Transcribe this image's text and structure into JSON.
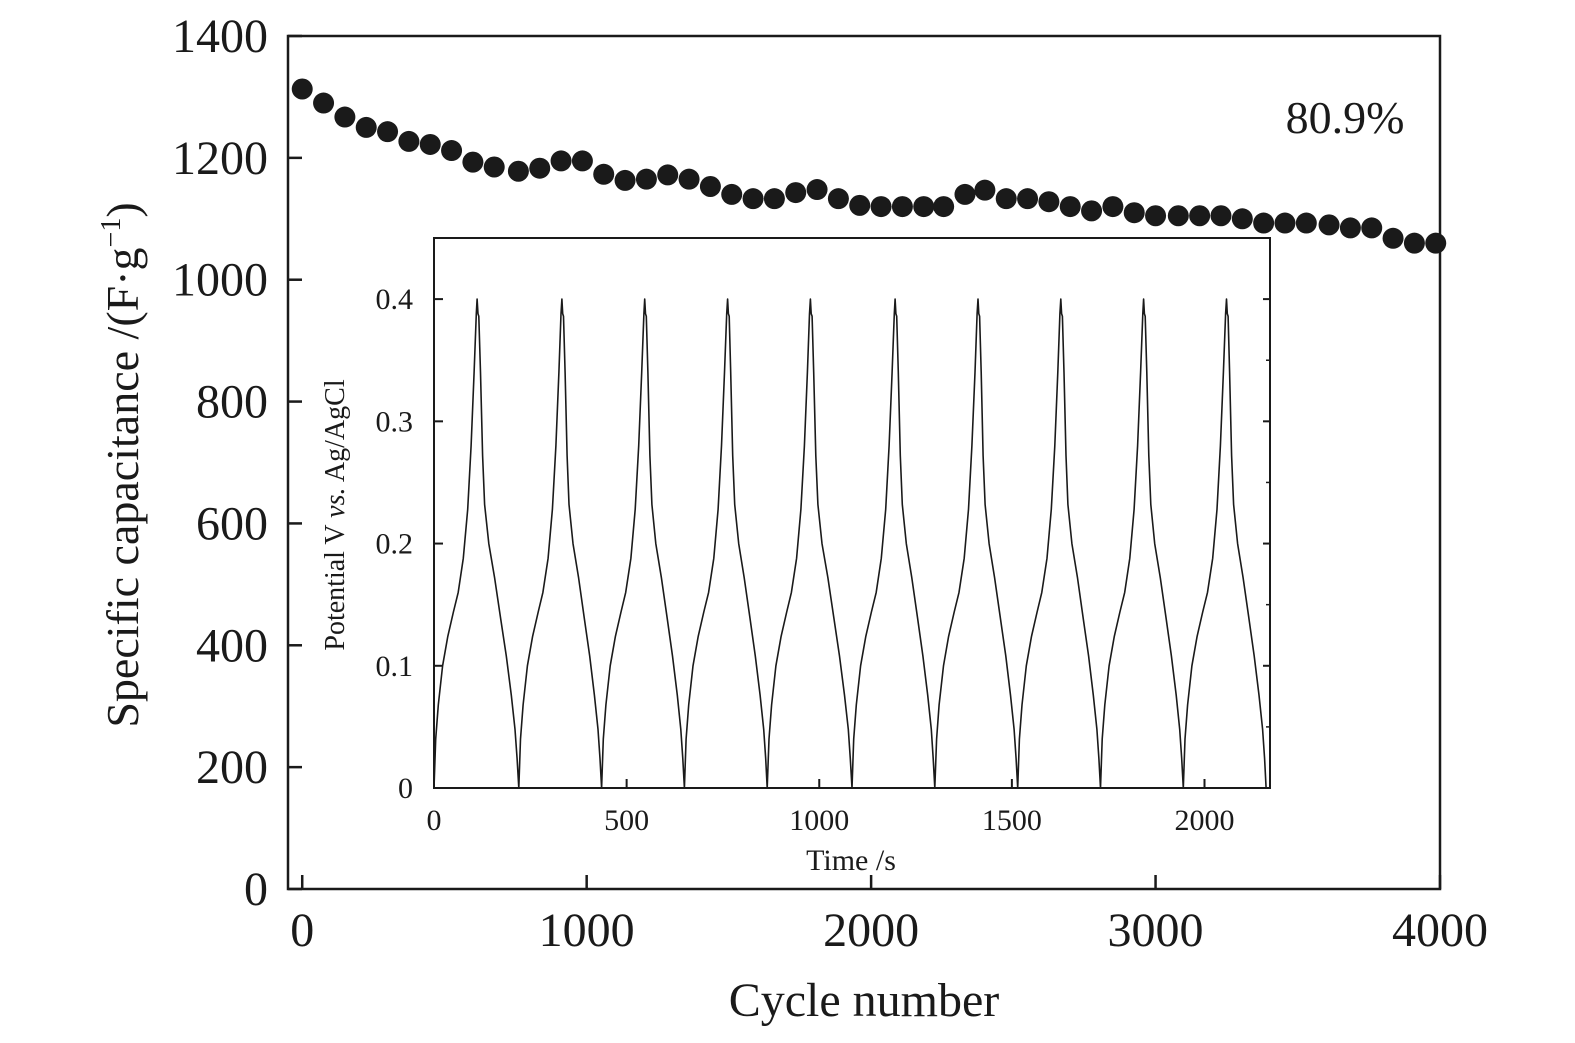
{
  "chart_data": [
    {
      "type": "scatter",
      "xlabel": "Cycle number",
      "ylabel": "Specific capacitance /(F·g",
      "ylabel_sup": "−1",
      "ylabel_close": ")",
      "xlim": [
        -50,
        4000
      ],
      "ylim": [
        0,
        1400
      ],
      "xticks": [
        0,
        1000,
        2000,
        3000,
        4000
      ],
      "yticks": [
        0,
        200,
        400,
        600,
        800,
        1000,
        1200,
        1400
      ],
      "annotation": "80.9%",
      "marker_color": "#1a1a1a",
      "series": [
        {
          "x": [
            0,
            75,
            150,
            225,
            300,
            375,
            450,
            525,
            600,
            675,
            760,
            835,
            910,
            985,
            1060,
            1135,
            1210,
            1285,
            1360,
            1435,
            1510,
            1585,
            1660,
            1735,
            1810,
            1885,
            1960,
            2035,
            2110,
            2185,
            2255,
            2330,
            2400,
            2475,
            2550,
            2625,
            2700,
            2775,
            2850,
            2925,
            3000,
            3080,
            3155,
            3230,
            3305,
            3380,
            3455,
            3530,
            3610,
            3685,
            3760,
            3835,
            3910,
            3985
          ],
          "y": [
            1313,
            1290,
            1267,
            1250,
            1243,
            1227,
            1222,
            1212,
            1193,
            1185,
            1178,
            1183,
            1195,
            1195,
            1173,
            1163,
            1165,
            1172,
            1165,
            1153,
            1140,
            1133,
            1133,
            1143,
            1148,
            1133,
            1122,
            1120,
            1120,
            1120,
            1120,
            1140,
            1147,
            1133,
            1133,
            1128,
            1120,
            1113,
            1120,
            1110,
            1105,
            1105,
            1105,
            1105,
            1100,
            1093,
            1093,
            1093,
            1090,
            1085,
            1085,
            1068,
            1060,
            1060
          ]
        }
      ]
    },
    {
      "type": "line",
      "xlabel": "Time /s",
      "ylabel_pre": "Potential V ",
      "ylabel_italic": "vs.",
      "ylabel_post": " Ag/AgCl",
      "xlim": [
        0,
        2170
      ],
      "ylim": [
        0,
        0.45
      ],
      "xticks": [
        0,
        500,
        1000,
        1500,
        2000
      ],
      "yticks": [
        0,
        0.1,
        0.2,
        0.3,
        0.4
      ],
      "ytick_labels": [
        "0",
        "0.1",
        "0.2",
        "0.3",
        "0.4"
      ],
      "cycle_starts": [
        0,
        220,
        435,
        650,
        865,
        1085,
        1300,
        1515,
        1730,
        1945
      ],
      "charge_duration": 112,
      "peak_potential": 0.4,
      "line_color": "#1a1a1a"
    }
  ]
}
